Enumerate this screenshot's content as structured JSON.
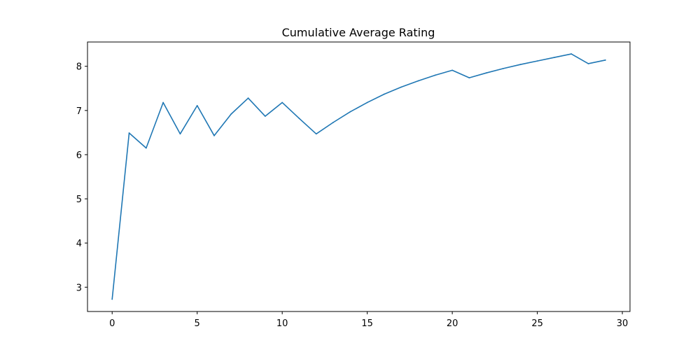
{
  "chart_data": {
    "type": "line",
    "title": "Cumulative Average Rating",
    "xlabel": "",
    "ylabel": "",
    "xlim": [
      -1.45,
      30.45
    ],
    "ylim": [
      2.45,
      8.55
    ],
    "x_ticks": [
      0,
      5,
      10,
      15,
      20,
      25,
      30
    ],
    "y_ticks": [
      3,
      4,
      5,
      6,
      7,
      8
    ],
    "grid": false,
    "legend": "none",
    "series": [
      {
        "color": "#1f77b4",
        "x": [
          0,
          1,
          2,
          3,
          4,
          5,
          6,
          7,
          8,
          9,
          10,
          11,
          12,
          13,
          14,
          15,
          16,
          17,
          18,
          19,
          20,
          21,
          22,
          23,
          24,
          25,
          26,
          27,
          28,
          29
        ],
        "y": [
          2.73,
          6.49,
          6.15,
          7.18,
          6.47,
          7.11,
          6.43,
          6.92,
          7.28,
          6.87,
          7.18,
          6.82,
          6.47,
          6.73,
          6.97,
          7.18,
          7.37,
          7.53,
          7.67,
          7.8,
          7.91,
          7.74,
          7.85,
          7.95,
          8.04,
          8.12,
          8.2,
          8.28,
          8.06,
          8.14
        ]
      }
    ]
  }
}
